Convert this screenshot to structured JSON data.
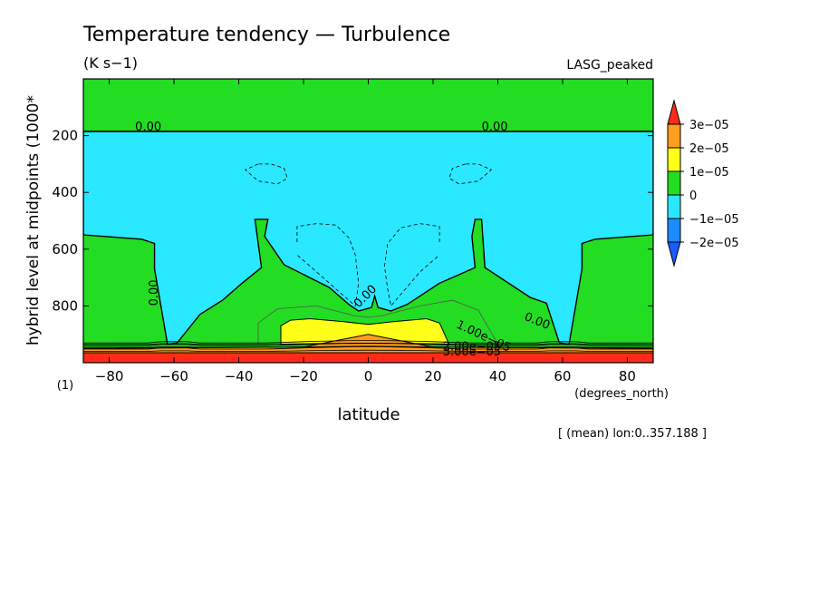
{
  "chart_data": {
    "type": "heatmap",
    "title": "Temperature tendency — Turbulence",
    "subtitle": "(K s−1)",
    "dataset_label": "LASG_peaked",
    "xlabel": "latitude",
    "x_units": "(degrees_north)",
    "ylabel": "hybrid level at midpoints (1000*",
    "y_units": "(1)",
    "footnote": "[ (mean) lon:0..357.188 ]",
    "xlim": [
      -88,
      88
    ],
    "ylim": [
      1000,
      0
    ],
    "x_ticks": [
      -80,
      -60,
      -40,
      -20,
      0,
      20,
      40,
      60,
      80
    ],
    "x_tick_labels": [
      "−80",
      "−60",
      "−40",
      "−20",
      "0",
      "20",
      "40",
      "60",
      "80"
    ],
    "y_ticks": [
      200,
      400,
      600,
      800
    ],
    "y_tick_labels": [
      "200",
      "400",
      "600",
      "800"
    ],
    "colorbar": {
      "labels": [
        "3e−05",
        "2e−05",
        "1e−05",
        "0",
        "−1e−05",
        "−2e−05"
      ],
      "colors": [
        "#ff2a1a",
        "#ff9e1c",
        "#ffff1a",
        "#22dd22",
        "#29e8ff",
        "#1a8cff",
        "#1a5cff"
      ]
    },
    "contour_labels": [
      {
        "text": "0.00",
        "lat": -72,
        "lev": 182,
        "angle": 0
      },
      {
        "text": "0.00",
        "lat": 35,
        "lev": 182,
        "angle": 0
      },
      {
        "text": "0.00",
        "lat": -65,
        "lev": 800,
        "angle": -90
      },
      {
        "text": "0.00",
        "lat": -3,
        "lev": 808,
        "angle": -45
      },
      {
        "text": "0.00",
        "lat": 48,
        "lev": 848,
        "angle": 22
      },
      {
        "text": "1.00e−05",
        "lat": 27,
        "lev": 875,
        "angle": 25
      },
      {
        "text": "2.00e−05",
        "lat": 23,
        "lev": 957,
        "angle": 0
      },
      {
        "text": "3.00e−05",
        "lat": 23,
        "lev": 975,
        "angle": 0
      }
    ],
    "regions": {
      "zero_line_level": 185,
      "negative_region_boundary": [
        [
          -88,
          550
        ],
        [
          -70,
          565
        ],
        [
          -66,
          580
        ],
        [
          -66,
          670
        ],
        [
          -62,
          935
        ],
        [
          -59,
          930
        ],
        [
          -52,
          830
        ],
        [
          -45,
          780
        ],
        [
          -39,
          720
        ],
        [
          -33,
          665
        ],
        [
          -35,
          495
        ],
        [
          -31,
          495
        ],
        [
          -32,
          555
        ],
        [
          -26,
          655
        ],
        [
          -12,
          735
        ],
        [
          -6,
          795
        ],
        [
          -3,
          818
        ],
        [
          1,
          805
        ],
        [
          2,
          765
        ],
        [
          3,
          805
        ],
        [
          7,
          818
        ],
        [
          12,
          795
        ],
        [
          22,
          720
        ],
        [
          33,
          665
        ],
        [
          32,
          555
        ],
        [
          33,
          495
        ],
        [
          35,
          495
        ],
        [
          36,
          665
        ],
        [
          50,
          770
        ],
        [
          55,
          790
        ],
        [
          59,
          930
        ],
        [
          62,
          935
        ],
        [
          66,
          670
        ],
        [
          66,
          580
        ],
        [
          70,
          565
        ],
        [
          88,
          550
        ]
      ],
      "surface_level": 930,
      "yellow_region": [
        [
          -27,
          935
        ],
        [
          -27,
          870
        ],
        [
          -24,
          850
        ],
        [
          -18,
          845
        ],
        [
          -8,
          855
        ],
        [
          0,
          865
        ],
        [
          8,
          855
        ],
        [
          18,
          845
        ],
        [
          22,
          860
        ],
        [
          25,
          935
        ]
      ],
      "orange_band_top": [
        [
          -88,
          950
        ],
        [
          -20,
          945
        ],
        [
          0,
          900
        ],
        [
          20,
          945
        ],
        [
          88,
          950
        ]
      ],
      "red_band_top": [
        [
          -88,
          965
        ],
        [
          88,
          965
        ]
      ],
      "light_green_inner": [
        [
          -34,
          935
        ],
        [
          -34,
          860
        ],
        [
          -28,
          810
        ],
        [
          -16,
          800
        ],
        [
          -4,
          835
        ],
        [
          0,
          840
        ],
        [
          4,
          835
        ],
        [
          16,
          800
        ],
        [
          26,
          780
        ],
        [
          34,
          815
        ],
        [
          40,
          935
        ]
      ],
      "dashed_contours": [
        [
          [
            -34,
            300
          ],
          [
            -38,
            320
          ],
          [
            -34,
            360
          ],
          [
            -28,
            370
          ],
          [
            -25,
            350
          ],
          [
            -26,
            315
          ],
          [
            -30,
            300
          ],
          [
            -34,
            300
          ]
        ],
        [
          [
            30,
            300
          ],
          [
            26,
            315
          ],
          [
            25,
            350
          ],
          [
            28,
            370
          ],
          [
            34,
            360
          ],
          [
            38,
            320
          ],
          [
            34,
            300
          ],
          [
            30,
            300
          ]
        ],
        [
          [
            -22,
            575
          ],
          [
            -22,
            520
          ],
          [
            -16,
            510
          ],
          [
            -10,
            515
          ],
          [
            -6,
            560
          ],
          [
            -4,
            620
          ],
          [
            -3,
            720
          ],
          [
            -4,
            800
          ],
          [
            -8,
            760
          ],
          [
            -16,
            680
          ],
          [
            -22,
            620
          ]
        ],
        [
          [
            22,
            575
          ],
          [
            22,
            520
          ],
          [
            16,
            510
          ],
          [
            10,
            525
          ],
          [
            6,
            580
          ],
          [
            5,
            660
          ],
          [
            6,
            740
          ],
          [
            7,
            800
          ],
          [
            10,
            760
          ],
          [
            16,
            680
          ],
          [
            22,
            620
          ]
        ]
      ]
    }
  }
}
